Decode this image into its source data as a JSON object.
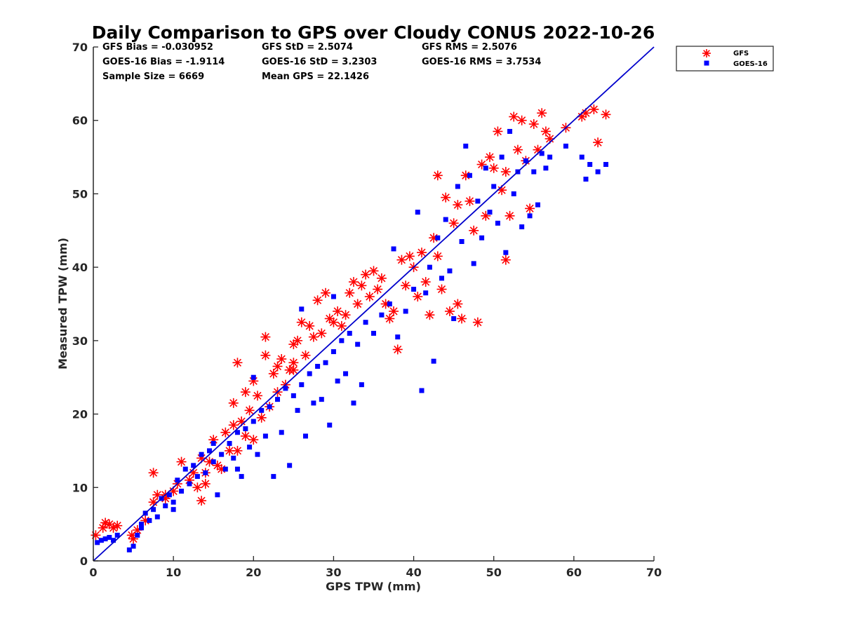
{
  "chart_data": {
    "type": "scatter",
    "title": "Daily Comparison to GPS over Cloudy CONUS 2022-10-26",
    "xlabel": "GPS TPW (mm)",
    "ylabel": "Measured TPW (mm)",
    "xlim": [
      0,
      70
    ],
    "ylim": [
      0,
      70
    ],
    "xticks": [
      "0",
      "10",
      "20",
      "30",
      "40",
      "50",
      "60",
      "70"
    ],
    "yticks": [
      "0",
      "10",
      "20",
      "30",
      "40",
      "50",
      "60",
      "70"
    ],
    "grid": false,
    "legend_position": "outside-top-right",
    "reference_line": {
      "x": [
        0,
        70
      ],
      "y": [
        0,
        70
      ],
      "color": "#0000cc"
    },
    "annotations": [
      "GFS Bias = -0.030952",
      "GFS StD = 2.5074",
      "GFS RMS = 2.5076",
      "GOES-16 Bias = -1.9114",
      "GOES-16 StD = 3.2303",
      "GOES-16 RMS = 3.7534",
      "Sample Size = 6669",
      "Mean GPS = 22.1426"
    ],
    "series": [
      {
        "name": "GFS",
        "marker": "asterisk",
        "color": "#ff0000",
        "points": [
          [
            0.3,
            3.5
          ],
          [
            1.2,
            4.5
          ],
          [
            1.5,
            5.2
          ],
          [
            2.0,
            5.0
          ],
          [
            2.5,
            4.5
          ],
          [
            4.8,
            3.5
          ],
          [
            5.0,
            3.0
          ],
          [
            5.5,
            4.2
          ],
          [
            6.5,
            5.5
          ],
          [
            7.5,
            8.0
          ],
          [
            7.5,
            12.0
          ],
          [
            8.0,
            9.0
          ],
          [
            9.0,
            8.5
          ],
          [
            10.0,
            9.5
          ],
          [
            10.5,
            10.5
          ],
          [
            11.0,
            13.5
          ],
          [
            12.0,
            11.0
          ],
          [
            12.5,
            12.0
          ],
          [
            13.0,
            10.0
          ],
          [
            13.5,
            8.2
          ],
          [
            13.5,
            14.0
          ],
          [
            14.0,
            12.0
          ],
          [
            14.5,
            13.5
          ],
          [
            15.0,
            16.5
          ],
          [
            15.5,
            13.0
          ],
          [
            16.0,
            12.5
          ],
          [
            16.5,
            17.5
          ],
          [
            17.0,
            15.0
          ],
          [
            17.5,
            18.5
          ],
          [
            17.5,
            21.5
          ],
          [
            18.0,
            27.0
          ],
          [
            18.0,
            15.0
          ],
          [
            18.5,
            19.0
          ],
          [
            19.0,
            23.0
          ],
          [
            19.0,
            17.0
          ],
          [
            19.5,
            20.5
          ],
          [
            20.0,
            24.5
          ],
          [
            20.0,
            16.5
          ],
          [
            20.5,
            22.5
          ],
          [
            21.0,
            19.5
          ],
          [
            21.5,
            28.0
          ],
          [
            21.5,
            30.5
          ],
          [
            22.0,
            21.0
          ],
          [
            22.5,
            25.5
          ],
          [
            23.0,
            23.0
          ],
          [
            23.0,
            26.5
          ],
          [
            23.5,
            27.5
          ],
          [
            24.0,
            24.0
          ],
          [
            24.5,
            26.0
          ],
          [
            25.0,
            29.5
          ],
          [
            25.0,
            27.0
          ],
          [
            25.5,
            30.0
          ],
          [
            26.0,
            32.5
          ],
          [
            26.5,
            28.0
          ],
          [
            27.0,
            32.0
          ],
          [
            27.5,
            30.5
          ],
          [
            28.0,
            35.5
          ],
          [
            28.5,
            31.0
          ],
          [
            29.0,
            36.5
          ],
          [
            29.5,
            33.0
          ],
          [
            30.0,
            32.5
          ],
          [
            30.5,
            34.0
          ],
          [
            31.0,
            32.0
          ],
          [
            31.5,
            33.5
          ],
          [
            32.0,
            36.5
          ],
          [
            32.5,
            38.0
          ],
          [
            33.0,
            35.0
          ],
          [
            33.5,
            37.5
          ],
          [
            34.0,
            39.0
          ],
          [
            34.5,
            36.0
          ],
          [
            35.0,
            39.5
          ],
          [
            35.5,
            37.0
          ],
          [
            36.0,
            38.5
          ],
          [
            36.5,
            35.0
          ],
          [
            37.0,
            33.0
          ],
          [
            37.5,
            34.0
          ],
          [
            38.0,
            28.8
          ],
          [
            38.5,
            41.0
          ],
          [
            39.0,
            37.5
          ],
          [
            39.5,
            41.5
          ],
          [
            40.0,
            40.0
          ],
          [
            40.5,
            36.0
          ],
          [
            41.0,
            42.0
          ],
          [
            41.5,
            38.0
          ],
          [
            42.0,
            33.5
          ],
          [
            42.5,
            44.0
          ],
          [
            43.0,
            41.5
          ],
          [
            43.0,
            52.5
          ],
          [
            43.5,
            37.0
          ],
          [
            44.0,
            49.5
          ],
          [
            44.5,
            34.0
          ],
          [
            45.0,
            46.0
          ],
          [
            45.5,
            48.5
          ],
          [
            46.0,
            33.0
          ],
          [
            46.5,
            52.5
          ],
          [
            47.0,
            49.0
          ],
          [
            47.5,
            45.0
          ],
          [
            48.0,
            32.5
          ],
          [
            48.5,
            54.0
          ],
          [
            49.0,
            47.0
          ],
          [
            49.5,
            55.0
          ],
          [
            50.0,
            53.5
          ],
          [
            50.5,
            58.5
          ],
          [
            51.0,
            50.5
          ],
          [
            51.5,
            53.0
          ],
          [
            52.0,
            47.0
          ],
          [
            52.5,
            60.5
          ],
          [
            53.0,
            56.0
          ],
          [
            53.5,
            60.0
          ],
          [
            54.0,
            54.5
          ],
          [
            54.5,
            48.0
          ],
          [
            55.0,
            59.5
          ],
          [
            55.5,
            56.0
          ],
          [
            56.0,
            61.0
          ],
          [
            56.5,
            58.5
          ],
          [
            57.0,
            57.5
          ],
          [
            59.0,
            59.0
          ],
          [
            61.0,
            60.5
          ],
          [
            61.5,
            61.0
          ],
          [
            62.5,
            61.5
          ],
          [
            63.0,
            57.0
          ],
          [
            64.0,
            60.8
          ],
          [
            51.5,
            41.0
          ],
          [
            45.5,
            35.0
          ],
          [
            25.0,
            26.0
          ],
          [
            14.0,
            10.5
          ],
          [
            9.0,
            9.0
          ],
          [
            3.0,
            4.8
          ]
        ]
      },
      {
        "name": "GOES-16",
        "marker": "square",
        "color": "#0000ff",
        "points": [
          [
            0.5,
            2.5
          ],
          [
            1.0,
            2.8
          ],
          [
            1.5,
            3.0
          ],
          [
            2.0,
            3.2
          ],
          [
            2.5,
            2.8
          ],
          [
            4.5,
            1.5
          ],
          [
            5.0,
            2.0
          ],
          [
            5.5,
            3.5
          ],
          [
            6.0,
            4.5
          ],
          [
            6.5,
            6.5
          ],
          [
            7.0,
            5.5
          ],
          [
            7.5,
            7.0
          ],
          [
            8.0,
            6.0
          ],
          [
            8.5,
            8.5
          ],
          [
            9.0,
            7.5
          ],
          [
            9.5,
            9.0
          ],
          [
            10.0,
            8.0
          ],
          [
            10.5,
            11.0
          ],
          [
            11.0,
            9.5
          ],
          [
            11.5,
            12.5
          ],
          [
            12.0,
            10.5
          ],
          [
            12.5,
            13.0
          ],
          [
            13.0,
            11.5
          ],
          [
            13.5,
            14.5
          ],
          [
            14.0,
            12.0
          ],
          [
            14.5,
            15.0
          ],
          [
            15.0,
            13.5
          ],
          [
            15.5,
            9.0
          ],
          [
            16.0,
            14.5
          ],
          [
            16.5,
            12.5
          ],
          [
            17.0,
            16.0
          ],
          [
            17.5,
            14.0
          ],
          [
            18.0,
            17.5
          ],
          [
            18.5,
            11.5
          ],
          [
            19.0,
            18.0
          ],
          [
            19.5,
            15.5
          ],
          [
            20.0,
            19.0
          ],
          [
            20.5,
            14.5
          ],
          [
            21.0,
            20.5
          ],
          [
            21.5,
            17.0
          ],
          [
            22.0,
            21.0
          ],
          [
            22.5,
            11.5
          ],
          [
            23.0,
            22.0
          ],
          [
            23.5,
            17.5
          ],
          [
            24.0,
            23.5
          ],
          [
            24.5,
            13.0
          ],
          [
            25.0,
            22.5
          ],
          [
            25.5,
            20.5
          ],
          [
            26.0,
            24.0
          ],
          [
            26.5,
            17.0
          ],
          [
            27.0,
            25.5
          ],
          [
            27.5,
            21.5
          ],
          [
            28.0,
            26.5
          ],
          [
            28.5,
            22.0
          ],
          [
            29.0,
            27.0
          ],
          [
            29.5,
            18.5
          ],
          [
            30.0,
            28.5
          ],
          [
            30.5,
            24.5
          ],
          [
            31.0,
            30.0
          ],
          [
            31.5,
            25.5
          ],
          [
            32.0,
            31.0
          ],
          [
            32.5,
            21.5
          ],
          [
            33.0,
            29.5
          ],
          [
            33.5,
            24.0
          ],
          [
            34.0,
            32.5
          ],
          [
            35.0,
            31.0
          ],
          [
            36.0,
            33.5
          ],
          [
            37.0,
            35.0
          ],
          [
            38.0,
            30.5
          ],
          [
            39.0,
            34.0
          ],
          [
            40.0,
            37.0
          ],
          [
            40.5,
            47.5
          ],
          [
            41.0,
            23.2
          ],
          [
            41.5,
            36.5
          ],
          [
            42.0,
            40.0
          ],
          [
            42.5,
            27.2
          ],
          [
            43.0,
            44.0
          ],
          [
            43.5,
            38.5
          ],
          [
            44.0,
            46.5
          ],
          [
            44.5,
            39.5
          ],
          [
            45.0,
            33.0
          ],
          [
            45.5,
            51.0
          ],
          [
            46.0,
            43.5
          ],
          [
            46.5,
            56.5
          ],
          [
            47.0,
            52.5
          ],
          [
            47.5,
            40.5
          ],
          [
            48.0,
            49.0
          ],
          [
            48.5,
            44.0
          ],
          [
            49.0,
            53.5
          ],
          [
            49.5,
            47.5
          ],
          [
            50.0,
            51.0
          ],
          [
            50.5,
            46.0
          ],
          [
            51.0,
            55.0
          ],
          [
            51.5,
            42.0
          ],
          [
            52.0,
            58.5
          ],
          [
            52.5,
            50.0
          ],
          [
            53.0,
            53.0
          ],
          [
            53.5,
            45.5
          ],
          [
            54.0,
            54.5
          ],
          [
            54.5,
            47.0
          ],
          [
            55.0,
            53.0
          ],
          [
            55.5,
            48.5
          ],
          [
            56.0,
            55.5
          ],
          [
            56.5,
            53.5
          ],
          [
            57.0,
            55.0
          ],
          [
            59.0,
            56.5
          ],
          [
            61.0,
            55.0
          ],
          [
            61.5,
            52.0
          ],
          [
            62.0,
            54.0
          ],
          [
            63.0,
            53.0
          ],
          [
            64.0,
            54.0
          ],
          [
            30.0,
            36.0
          ],
          [
            20.0,
            25.0
          ],
          [
            15.0,
            16.0
          ],
          [
            10.0,
            7.0
          ],
          [
            6.0,
            5.0
          ],
          [
            3.0,
            3.5
          ],
          [
            37.5,
            42.5
          ],
          [
            26.0,
            34.3
          ],
          [
            18.0,
            12.5
          ]
        ]
      }
    ]
  },
  "legend": {
    "items": [
      {
        "label": "GFS",
        "color": "#ff0000",
        "marker": "asterisk"
      },
      {
        "label": "GOES-16",
        "color": "#0000ff",
        "marker": "square"
      }
    ]
  }
}
